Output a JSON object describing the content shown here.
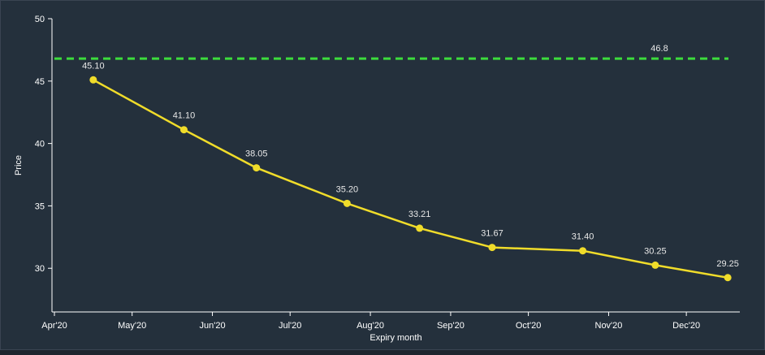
{
  "colors": {
    "background": "#24303c",
    "axis": "#ffffff",
    "series_line": "#f0dc2a",
    "reference_line": "#3cdc3c",
    "label_text": "#e8e8e8"
  },
  "chart_data": {
    "type": "line",
    "xlabel": "Expiry month",
    "ylabel": "Price",
    "ylim": [
      26.5,
      50
    ],
    "yticks": [
      30,
      35,
      40,
      45,
      50
    ],
    "x_axis_range": [
      "2020-04-01",
      "2021-01-01"
    ],
    "x_ticks": [
      {
        "date": "2020-04-01",
        "label": "Apr'20"
      },
      {
        "date": "2020-05-01",
        "label": "May'20"
      },
      {
        "date": "2020-06-01",
        "label": "Jun'20"
      },
      {
        "date": "2020-07-01",
        "label": "Jul'20"
      },
      {
        "date": "2020-08-01",
        "label": "Aug'20"
      },
      {
        "date": "2020-09-01",
        "label": "Sep'20"
      },
      {
        "date": "2020-10-01",
        "label": "Oct'20"
      },
      {
        "date": "2020-11-01",
        "label": "Nov'20"
      },
      {
        "date": "2020-12-01",
        "label": "Dec'20"
      }
    ],
    "series": [
      {
        "points": [
          {
            "x": "2020-04-16",
            "y": 45.1,
            "label": "45.10"
          },
          {
            "x": "2020-05-21",
            "y": 41.1,
            "label": "41.10"
          },
          {
            "x": "2020-06-18",
            "y": 38.05,
            "label": "38.05"
          },
          {
            "x": "2020-07-23",
            "y": 35.2,
            "label": "35.20"
          },
          {
            "x": "2020-08-20",
            "y": 33.21,
            "label": "33.21"
          },
          {
            "x": "2020-09-17",
            "y": 31.67,
            "label": "31.67"
          },
          {
            "x": "2020-10-22",
            "y": 31.4,
            "label": "31.40"
          },
          {
            "x": "2020-11-19",
            "y": 30.25,
            "label": "30.25"
          },
          {
            "x": "2020-12-17",
            "y": 29.25,
            "label": "29.25"
          }
        ]
      }
    ],
    "reference_line": {
      "y": 46.8,
      "label": "46.8",
      "style": "dashed"
    },
    "grid": false,
    "legend": "none"
  }
}
